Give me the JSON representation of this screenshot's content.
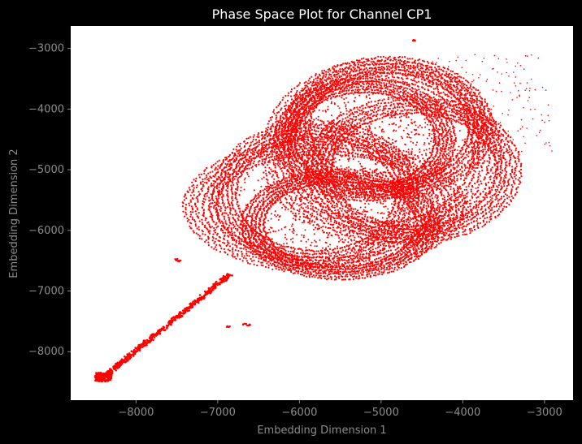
{
  "colors": {
    "background": "#000000",
    "plot_background": "#ffffff",
    "points": "#ff0000",
    "axis_text": "#8c8c8c",
    "title_text": "#ffffff"
  },
  "chart_data": {
    "type": "scatter",
    "title": "Phase Space Plot for Channel CP1",
    "xlabel": "Embedding Dimension 1",
    "ylabel": "Embedding Dimension 2",
    "xlim": [
      -8800,
      -2650
    ],
    "ylim": [
      -8800,
      -2630
    ],
    "grid": false,
    "legend": "none",
    "xticks": [
      -8000,
      -7000,
      -6000,
      -5000,
      -4000,
      -3000
    ],
    "xtick_labels": [
      "−8000",
      "−7000",
      "−6000",
      "−5000",
      "−4000",
      "−3000"
    ],
    "yticks": [
      -3000,
      -4000,
      -5000,
      -6000,
      -7000,
      -8000
    ],
    "ytick_labels": [
      "−3000",
      "−4000",
      "−5000",
      "−6000",
      "−7000",
      "−8000"
    ],
    "series": [
      {
        "description_rings": [
          {
            "cx": -5000,
            "cy": -4700,
            "rx": 1450,
            "ry": 1500
          },
          {
            "cx": -4900,
            "cy": -4300,
            "rx": 1250,
            "ry": 1150
          },
          {
            "cx": -5700,
            "cy": -5600,
            "rx": 1700,
            "ry": 1100
          },
          {
            "cx": -5800,
            "cy": -5400,
            "rx": 1250,
            "ry": 1200
          },
          {
            "cx": -5200,
            "cy": -4500,
            "rx": 1100,
            "ry": 1000
          },
          {
            "cx": -4600,
            "cy": -5000,
            "rx": 1300,
            "ry": 1200
          },
          {
            "cx": -5500,
            "cy": -5900,
            "rx": 1200,
            "ry": 900
          }
        ],
        "tail": {
          "x0": -8400,
          "y0": -8420,
          "x1": -6850,
          "y1": -6720
        },
        "outliers": [
          {
            "x": -7510,
            "y": -6480
          },
          {
            "x": -7470,
            "y": -6500
          },
          {
            "x": -6670,
            "y": -7550
          },
          {
            "x": -6620,
            "y": -7560
          },
          {
            "x": -6870,
            "y": -7580
          },
          {
            "x": -4600,
            "y": -2870
          }
        ]
      }
    ]
  }
}
